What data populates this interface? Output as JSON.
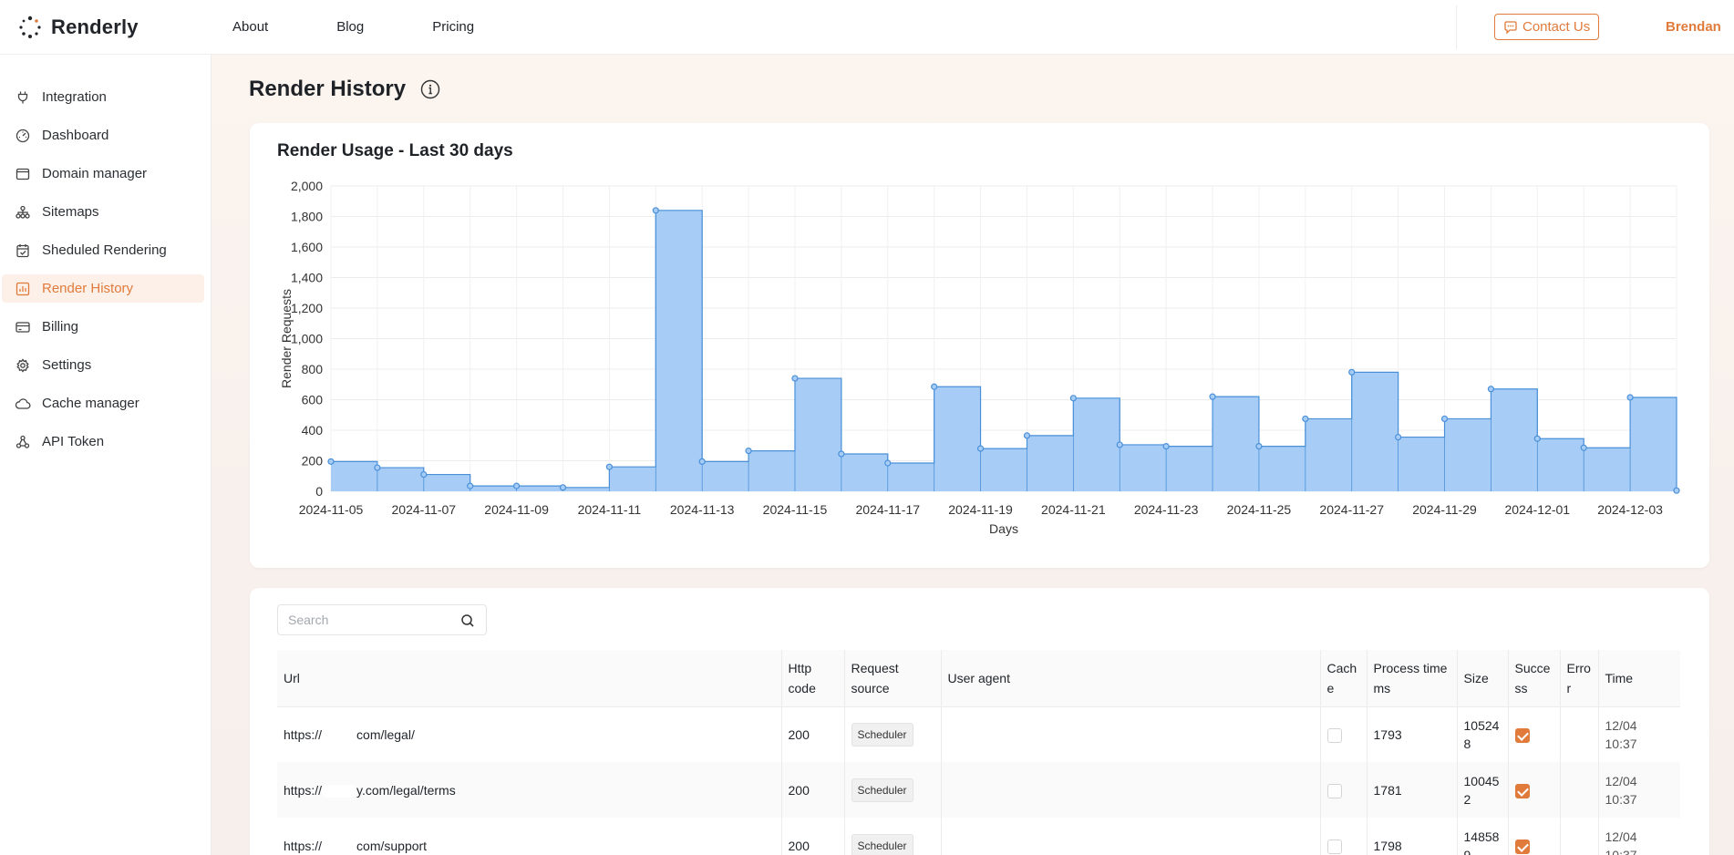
{
  "brand": {
    "name": "Renderly",
    "accent": "#e07b3c"
  },
  "topnav": {
    "items": [
      "About",
      "Blog",
      "Pricing"
    ]
  },
  "header": {
    "contact_label": "Contact Us",
    "user": "Brendan"
  },
  "sidebar": {
    "items": [
      {
        "label": "Integration",
        "icon": "plug-icon"
      },
      {
        "label": "Dashboard",
        "icon": "dashboard-icon"
      },
      {
        "label": "Domain manager",
        "icon": "window-icon"
      },
      {
        "label": "Sitemaps",
        "icon": "sitemap-icon"
      },
      {
        "label": "Sheduled Rendering",
        "icon": "calendar-icon"
      },
      {
        "label": "Render History",
        "icon": "chart-icon",
        "active": true
      },
      {
        "label": "Billing",
        "icon": "card-icon"
      },
      {
        "label": "Settings",
        "icon": "gear-icon"
      },
      {
        "label": "Cache manager",
        "icon": "cloud-icon"
      },
      {
        "label": "API Token",
        "icon": "token-icon"
      }
    ]
  },
  "page": {
    "title": "Render History"
  },
  "chart_data": {
    "type": "area",
    "title": "Render Usage - Last 30 days",
    "xlabel": "Days",
    "ylabel": "Render Requests",
    "ylim": [
      0,
      2000
    ],
    "yticks": [
      "0",
      "200",
      "400",
      "600",
      "800",
      "1,000",
      "1,200",
      "1,400",
      "1,600",
      "1,800",
      "2,000"
    ],
    "x": [
      "2024-11-05",
      "2024-11-06",
      "2024-11-07",
      "2024-11-08",
      "2024-11-09",
      "2024-11-10",
      "2024-11-11",
      "2024-11-12",
      "2024-11-13",
      "2024-11-14",
      "2024-11-15",
      "2024-11-16",
      "2024-11-17",
      "2024-11-18",
      "2024-11-19",
      "2024-11-20",
      "2024-11-21",
      "2024-11-22",
      "2024-11-23",
      "2024-11-24",
      "2024-11-25",
      "2024-11-26",
      "2024-11-27",
      "2024-11-28",
      "2024-11-29",
      "2024-11-30",
      "2024-12-01",
      "2024-12-02",
      "2024-12-03",
      "2024-12-04"
    ],
    "xtick_labels": [
      "2024-11-05",
      "2024-11-07",
      "2024-11-09",
      "2024-11-11",
      "2024-11-13",
      "2024-11-15",
      "2024-11-17",
      "2024-11-19",
      "2024-11-21",
      "2024-11-23",
      "2024-11-25",
      "2024-11-27",
      "2024-11-29",
      "2024-12-01",
      "2024-12-03"
    ],
    "series": [
      {
        "values": [
          195,
          155,
          110,
          35,
          35,
          25,
          160,
          1840,
          195,
          265,
          740,
          245,
          185,
          685,
          280,
          365,
          610,
          305,
          295,
          620,
          295,
          475,
          780,
          355,
          475,
          670,
          345,
          285,
          615,
          5
        ]
      }
    ],
    "step": "after",
    "grid": true,
    "colors": {
      "fill": "#a7cdf6",
      "line": "#4a90d9",
      "grid": "#ececec"
    }
  },
  "table": {
    "search_placeholder": "Search",
    "columns": [
      [
        "Url"
      ],
      [
        "Http",
        "code"
      ],
      [
        "Request",
        "source"
      ],
      [
        "User agent"
      ],
      [
        "Cach",
        "e"
      ],
      [
        "Process time",
        "ms"
      ],
      [
        "Size"
      ],
      [
        "Succe",
        "ss"
      ],
      [
        "Erro",
        "r"
      ],
      [
        "Time"
      ]
    ],
    "rows": [
      {
        "url_prefix": "https://",
        "url_suffix": "com/legal/",
        "http": "200",
        "source": "Scheduler",
        "agent": "",
        "cache": false,
        "process": "1793",
        "size": [
          "10524",
          "8"
        ],
        "success": true,
        "time": [
          "12/04",
          "10:37"
        ]
      },
      {
        "url_prefix": "https://",
        "url_suffix": "y.com/legal/terms",
        "http": "200",
        "source": "Scheduler",
        "agent": "",
        "cache": false,
        "process": "1781",
        "size": [
          "10045",
          "2"
        ],
        "success": true,
        "time": [
          "12/04",
          "10:37"
        ]
      },
      {
        "url_prefix": "https://",
        "url_suffix": "com/support",
        "http": "200",
        "source": "Scheduler",
        "agent": "",
        "cache": false,
        "process": "1798",
        "size": [
          "14858",
          "9"
        ],
        "success": true,
        "time": [
          "12/04",
          "10:37"
        ]
      }
    ]
  }
}
